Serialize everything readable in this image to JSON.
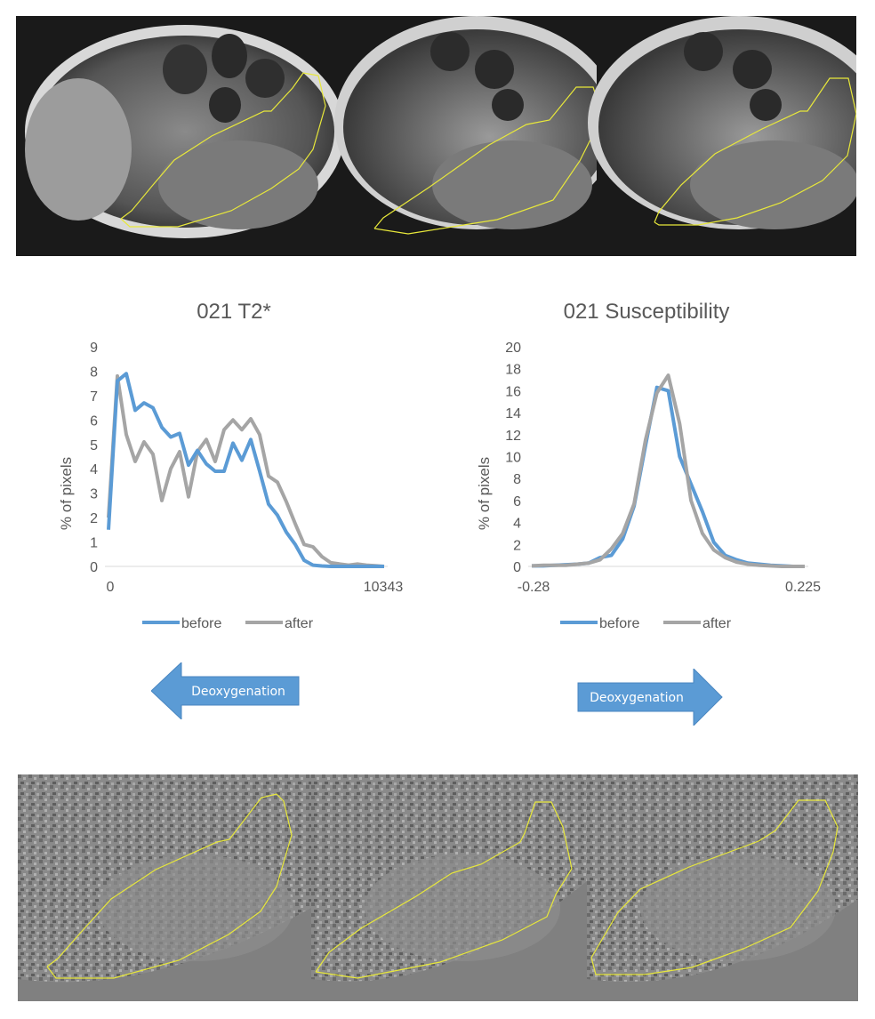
{
  "colors": {
    "before": "#5b9bd5",
    "after": "#a5a5a5",
    "arrow": "#5b9bd5",
    "roi": "#e8e83a"
  },
  "chart_data": [
    {
      "type": "line",
      "title": "021 T2*",
      "xlabel": "",
      "ylabel": "% of pixels",
      "x_tick_labels": [
        "0",
        "10343"
      ],
      "y_ticks": [
        "0",
        "1",
        "2",
        "3",
        "4",
        "5",
        "6",
        "7",
        "8",
        "9"
      ],
      "ylim": [
        0,
        9
      ],
      "legend": [
        "before",
        "after"
      ],
      "series": [
        {
          "name": "before",
          "values": [
            1.5,
            7.6,
            7.9,
            6.4,
            6.7,
            6.5,
            5.7,
            5.3,
            5.45,
            4.15,
            4.75,
            4.2,
            3.9,
            3.9,
            5.05,
            4.35,
            5.2,
            3.9,
            2.55,
            2.1,
            1.4,
            0.9,
            0.25,
            0.05,
            0.02,
            0.0,
            0.0,
            0.0,
            0.0,
            0.0,
            0.0,
            0.0
          ]
        },
        {
          "name": "after",
          "values": [
            2.0,
            7.8,
            5.4,
            4.3,
            5.1,
            4.6,
            2.7,
            4.0,
            4.7,
            2.85,
            4.7,
            5.2,
            4.3,
            5.6,
            6.0,
            5.6,
            6.05,
            5.4,
            3.7,
            3.45,
            2.65,
            1.75,
            0.9,
            0.8,
            0.4,
            0.15,
            0.1,
            0.05,
            0.1,
            0.05,
            0.03,
            0.0
          ]
        }
      ]
    },
    {
      "type": "line",
      "title": "021 Susceptibility",
      "xlabel": "",
      "ylabel": "% of pixels",
      "x_tick_labels": [
        "-0.28",
        "0.225"
      ],
      "y_ticks": [
        "0",
        "2",
        "4",
        "6",
        "8",
        "10",
        "12",
        "14",
        "16",
        "18",
        "20"
      ],
      "ylim": [
        0,
        20
      ],
      "legend": [
        "before",
        "after"
      ],
      "series": [
        {
          "name": "before",
          "values": [
            0.05,
            0.05,
            0.1,
            0.15,
            0.2,
            0.3,
            0.8,
            1.0,
            2.5,
            5.5,
            11.0,
            16.3,
            16.0,
            10.0,
            7.5,
            5.0,
            2.2,
            1.0,
            0.6,
            0.3,
            0.2,
            0.1,
            0.05,
            0.0,
            0.0
          ]
        },
        {
          "name": "after",
          "values": [
            0.05,
            0.1,
            0.1,
            0.1,
            0.2,
            0.3,
            0.6,
            1.6,
            3.0,
            5.7,
            11.5,
            15.8,
            17.4,
            13.0,
            6.0,
            3.0,
            1.5,
            0.8,
            0.4,
            0.2,
            0.1,
            0.05,
            0.0,
            0.0,
            0.0
          ]
        }
      ]
    }
  ],
  "arrows": {
    "left_label": "Deoxygenation",
    "right_label": "Deoxygenation"
  }
}
